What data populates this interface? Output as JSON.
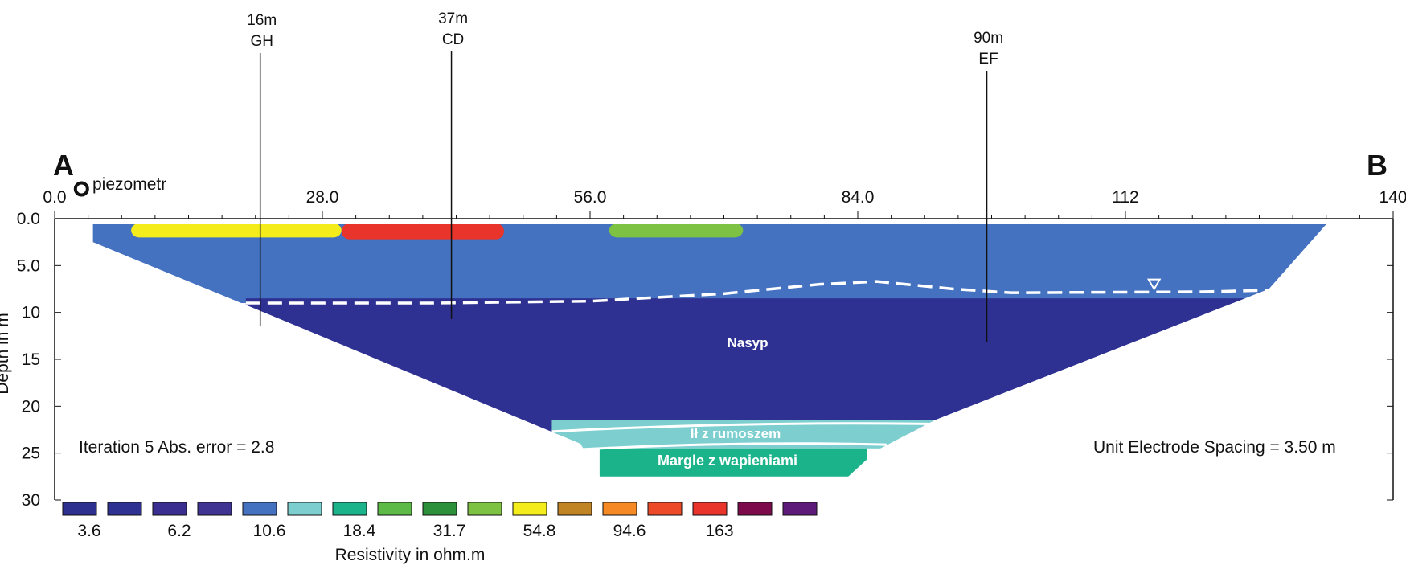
{
  "chart_data": {
    "type": "heatmap",
    "title": "",
    "profile_start_label": "A",
    "profile_end_label": "B",
    "x_ticks": [
      "0.0",
      "28.0",
      "56.0",
      "84.0",
      "112",
      "140"
    ],
    "x_tick_values": [
      0,
      28,
      56,
      84,
      112,
      140
    ],
    "xlim": [
      0,
      140
    ],
    "ylabel": "Depth in m",
    "y_ticks": [
      "0.0",
      "5.0",
      "10",
      "15",
      "20",
      "25",
      "30"
    ],
    "y_tick_values": [
      0,
      5,
      10,
      15,
      20,
      25,
      30
    ],
    "ylim": [
      0,
      30
    ],
    "piezometer": {
      "label": "piezometr",
      "x": 2.8
    },
    "markers": [
      {
        "distance_label": "16m",
        "code": "GH",
        "x": 21.5,
        "depth_to": 11.5
      },
      {
        "distance_label": "37m",
        "code": "CD",
        "x": 41.5,
        "depth_to": 10.7
      },
      {
        "distance_label": "90m",
        "code": "EF",
        "x": 97.5,
        "depth_to": 13.2
      }
    ],
    "annotations": {
      "iteration": "Iteration 5  Abs. error = 2.8",
      "electrode_spacing": "Unit Electrode Spacing = 3.50 m",
      "layers": [
        "Nasyp",
        "Ił z rumoszem",
        "Margle z wapieniami"
      ]
    },
    "water_table": {
      "depth_points": [
        [
          20,
          9.0
        ],
        [
          40,
          9.0
        ],
        [
          56,
          8.8
        ],
        [
          70,
          8.0
        ],
        [
          80,
          7.0
        ],
        [
          86,
          6.7
        ],
        [
          94,
          7.5
        ],
        [
          100,
          7.9
        ],
        [
          120,
          7.8
        ],
        [
          133,
          7.5
        ]
      ],
      "symbol_x": 115
    },
    "legend": {
      "title": "Resistivity in ohm.m",
      "colors": [
        "#2e3090",
        "#2e3192",
        "#3a2e91",
        "#403493",
        "#4472c1",
        "#7dcfcf",
        "#1bb38a",
        "#5dba46",
        "#2c8f3a",
        "#7dc242",
        "#f5ec1c",
        "#c08424",
        "#f58a24",
        "#ed4a2a",
        "#e8342a",
        "#7d0a4a",
        "#5e1a78"
      ],
      "labels": [
        "3.6",
        "6.2",
        "10.6",
        "18.4",
        "31.7",
        "54.8",
        "94.6",
        "163"
      ],
      "label_box_indices": [
        0,
        2,
        4,
        6,
        8,
        10,
        12,
        14
      ]
    },
    "regions": [
      {
        "name": "mid",
        "value": 11.0,
        "x_range": [
          4,
          133
        ],
        "depth_range": [
          0.5,
          9
        ]
      },
      {
        "name": "low",
        "value": 4.3,
        "x_range": [
          20,
          133
        ],
        "depth_range": [
          8.5,
          23
        ]
      },
      {
        "name": "clay",
        "value": 12.5,
        "x_range": [
          52,
          92
        ],
        "depth_range": [
          21.5,
          24.5
        ]
      },
      {
        "name": "marl",
        "value": 18.4,
        "x_range": [
          57,
          85
        ],
        "depth_range": [
          24.5,
          27.5
        ]
      },
      {
        "name": "high-1",
        "value": 60,
        "x_range": [
          8,
          30
        ],
        "depth_range": [
          0.5,
          2.0
        ]
      },
      {
        "name": "high-2",
        "value": 170,
        "x_range": [
          30,
          47
        ],
        "depth_range": [
          0.5,
          2.2
        ]
      },
      {
        "name": "high-3",
        "value": 40,
        "x_range": [
          58,
          72
        ],
        "depth_range": [
          0.5,
          2.0
        ]
      }
    ]
  }
}
